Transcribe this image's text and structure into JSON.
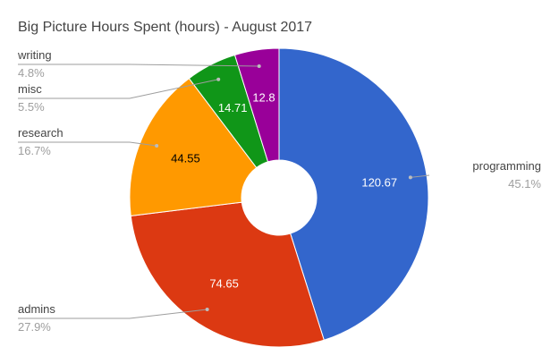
{
  "chart_data": {
    "type": "pie",
    "donut": true,
    "title": "Big Picture Hours Spent (hours) - August 2017",
    "categories": [
      "programming",
      "admins",
      "research",
      "misc",
      "writing"
    ],
    "values": [
      120.67,
      74.65,
      44.55,
      14.71,
      12.8
    ],
    "value_labels": [
      "120.67",
      "74.65",
      "44.55",
      "14.71",
      "12.8"
    ],
    "percent_labels": [
      "45.1%",
      "27.9%",
      "16.7%",
      "5.5%",
      "4.8%"
    ],
    "colors": [
      "#3366cc",
      "#dc3912",
      "#ff9900",
      "#109618",
      "#990099"
    ],
    "label_colors": [
      "#ffffff",
      "#ffffff",
      "#000000",
      "#ffffff",
      "#ffffff"
    ],
    "legend": "labeled"
  }
}
